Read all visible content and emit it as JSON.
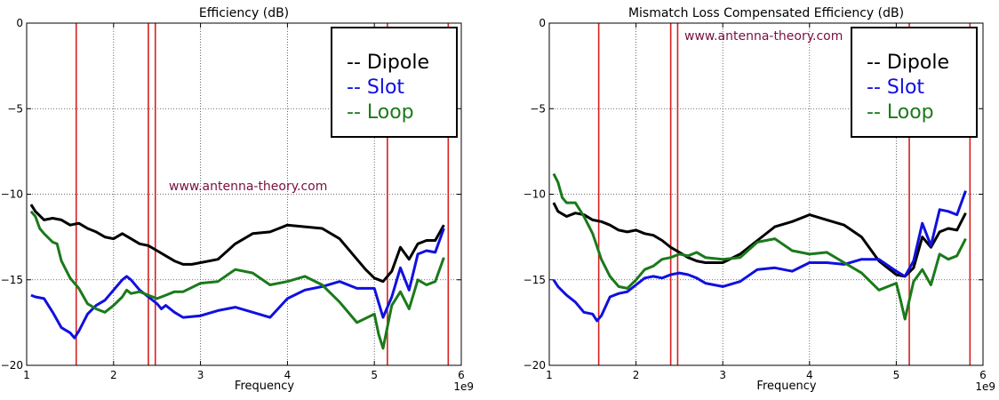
{
  "chart_data": [
    {
      "type": "line",
      "title": "Efficiency (dB)",
      "xlabel": "Frequency",
      "ylabel": "",
      "x_offset_label": "1e9",
      "xlim": [
        1,
        6
      ],
      "ylim": [
        -20,
        0
      ],
      "xticks": [
        "1",
        "2",
        "3",
        "4",
        "5",
        "6"
      ],
      "yticks": [
        "0",
        "−5",
        "−10",
        "−15",
        "−20"
      ],
      "grid": true,
      "legend_position": "top-right",
      "watermark": "www.antenna-theory.com",
      "vlines": [
        1.57,
        2.4,
        2.48,
        5.15,
        5.85
      ],
      "vline_color": "#d62020",
      "series": [
        {
          "name": "-- Dipole",
          "color": "#000000",
          "x": [
            1.05,
            1.1,
            1.2,
            1.3,
            1.4,
            1.5,
            1.6,
            1.7,
            1.8,
            1.9,
            2.0,
            2.1,
            2.2,
            2.3,
            2.4,
            2.5,
            2.6,
            2.7,
            2.8,
            2.9,
            3.0,
            3.2,
            3.4,
            3.6,
            3.8,
            4.0,
            4.2,
            4.4,
            4.6,
            4.8,
            4.9,
            5.0,
            5.1,
            5.2,
            5.3,
            5.4,
            5.5,
            5.6,
            5.7,
            5.8
          ],
          "y": [
            -10.6,
            -11.0,
            -11.5,
            -11.4,
            -11.5,
            -11.8,
            -11.7,
            -12.0,
            -12.2,
            -12.5,
            -12.6,
            -12.3,
            -12.6,
            -12.9,
            -13.0,
            -13.3,
            -13.6,
            -13.9,
            -14.1,
            -14.1,
            -14.0,
            -13.8,
            -12.9,
            -12.3,
            -12.2,
            -11.8,
            -11.9,
            -12.0,
            -12.6,
            -13.8,
            -14.4,
            -14.9,
            -15.1,
            -14.5,
            -13.1,
            -13.8,
            -12.9,
            -12.7,
            -12.7,
            -11.8
          ]
        },
        {
          "name": "-- Slot",
          "color": "#1010e0",
          "x": [
            1.05,
            1.1,
            1.2,
            1.3,
            1.4,
            1.5,
            1.55,
            1.6,
            1.7,
            1.8,
            1.9,
            2.0,
            2.1,
            2.15,
            2.2,
            2.3,
            2.4,
            2.5,
            2.55,
            2.6,
            2.7,
            2.8,
            3.0,
            3.2,
            3.4,
            3.6,
            3.8,
            4.0,
            4.2,
            4.4,
            4.6,
            4.8,
            5.0,
            5.1,
            5.2,
            5.3,
            5.4,
            5.5,
            5.6,
            5.7,
            5.8
          ],
          "y": [
            -15.9,
            -16.0,
            -16.1,
            -16.9,
            -17.8,
            -18.1,
            -18.4,
            -18.0,
            -17.0,
            -16.5,
            -16.2,
            -15.6,
            -15.0,
            -14.8,
            -15.0,
            -15.6,
            -16.0,
            -16.4,
            -16.7,
            -16.5,
            -16.9,
            -17.2,
            -17.1,
            -16.8,
            -16.6,
            -16.9,
            -17.2,
            -16.1,
            -15.6,
            -15.4,
            -15.1,
            -15.5,
            -15.5,
            -17.2,
            -16.0,
            -14.3,
            -15.6,
            -13.5,
            -13.3,
            -13.4,
            -12.0
          ]
        },
        {
          "name": "-- Loop",
          "color": "#1a7a1a",
          "x": [
            1.05,
            1.1,
            1.15,
            1.2,
            1.3,
            1.35,
            1.4,
            1.5,
            1.6,
            1.7,
            1.8,
            1.9,
            2.0,
            2.1,
            2.15,
            2.2,
            2.3,
            2.4,
            2.5,
            2.6,
            2.7,
            2.8,
            3.0,
            3.2,
            3.4,
            3.6,
            3.8,
            4.0,
            4.2,
            4.4,
            4.6,
            4.8,
            5.0,
            5.05,
            5.1,
            5.2,
            5.3,
            5.4,
            5.5,
            5.6,
            5.7,
            5.8
          ],
          "y": [
            -11.0,
            -11.3,
            -12.0,
            -12.3,
            -12.8,
            -12.9,
            -13.9,
            -14.9,
            -15.5,
            -16.4,
            -16.7,
            -16.9,
            -16.5,
            -16.0,
            -15.6,
            -15.8,
            -15.7,
            -15.9,
            -16.1,
            -15.9,
            -15.7,
            -15.7,
            -15.2,
            -15.1,
            -14.4,
            -14.6,
            -15.3,
            -15.1,
            -14.8,
            -15.3,
            -16.3,
            -17.5,
            -17.0,
            -18.2,
            -19.0,
            -16.5,
            -15.7,
            -16.7,
            -15.0,
            -15.3,
            -15.1,
            -13.7
          ]
        }
      ]
    },
    {
      "type": "line",
      "title": "Mismatch Loss Compensated Efficiency (dB)",
      "xlabel": "Frequency",
      "ylabel": "",
      "x_offset_label": "1e9",
      "xlim": [
        1,
        6
      ],
      "ylim": [
        -20,
        0
      ],
      "xticks": [
        "1",
        "2",
        "3",
        "4",
        "5",
        "6"
      ],
      "yticks": [
        "0",
        "−5",
        "−10",
        "−15",
        "−20"
      ],
      "grid": true,
      "legend_position": "top-right",
      "watermark": "www.antenna-theory.com",
      "vlines": [
        1.57,
        2.4,
        2.48,
        5.15,
        5.85
      ],
      "vline_color": "#d62020",
      "series": [
        {
          "name": "-- Dipole",
          "color": "#000000",
          "x": [
            1.05,
            1.1,
            1.2,
            1.3,
            1.4,
            1.5,
            1.6,
            1.7,
            1.8,
            1.9,
            2.0,
            2.1,
            2.2,
            2.3,
            2.4,
            2.5,
            2.6,
            2.7,
            2.8,
            3.0,
            3.2,
            3.4,
            3.6,
            3.8,
            4.0,
            4.2,
            4.4,
            4.6,
            4.8,
            4.9,
            5.0,
            5.1,
            5.2,
            5.3,
            5.4,
            5.5,
            5.6,
            5.7,
            5.8
          ],
          "y": [
            -10.5,
            -11.0,
            -11.3,
            -11.1,
            -11.2,
            -11.5,
            -11.6,
            -11.8,
            -12.1,
            -12.2,
            -12.1,
            -12.3,
            -12.4,
            -12.7,
            -13.1,
            -13.4,
            -13.7,
            -13.9,
            -14.0,
            -14.0,
            -13.5,
            -12.7,
            -11.9,
            -11.6,
            -11.2,
            -11.5,
            -11.8,
            -12.5,
            -13.9,
            -14.3,
            -14.7,
            -14.8,
            -14.3,
            -12.5,
            -13.1,
            -12.2,
            -12.0,
            -12.1,
            -11.1
          ]
        },
        {
          "name": "-- Slot",
          "color": "#1010e0",
          "x": [
            1.05,
            1.1,
            1.2,
            1.3,
            1.4,
            1.5,
            1.55,
            1.6,
            1.7,
            1.8,
            1.9,
            2.0,
            2.1,
            2.2,
            2.3,
            2.4,
            2.5,
            2.6,
            2.7,
            2.8,
            3.0,
            3.2,
            3.4,
            3.6,
            3.8,
            4.0,
            4.2,
            4.4,
            4.6,
            4.8,
            5.0,
            5.1,
            5.2,
            5.3,
            5.4,
            5.5,
            5.6,
            5.7,
            5.8
          ],
          "y": [
            -15.0,
            -15.4,
            -15.9,
            -16.3,
            -16.9,
            -17.0,
            -17.4,
            -17.1,
            -16.0,
            -15.8,
            -15.7,
            -15.3,
            -14.9,
            -14.8,
            -14.9,
            -14.7,
            -14.6,
            -14.7,
            -14.9,
            -15.2,
            -15.4,
            -15.1,
            -14.4,
            -14.3,
            -14.5,
            -14.0,
            -14.0,
            -14.1,
            -13.8,
            -13.8,
            -14.5,
            -14.8,
            -13.9,
            -11.7,
            -13.0,
            -10.9,
            -11.0,
            -11.2,
            -9.8
          ]
        },
        {
          "name": "-- Loop",
          "color": "#1a7a1a",
          "x": [
            1.05,
            1.1,
            1.15,
            1.2,
            1.3,
            1.4,
            1.5,
            1.6,
            1.7,
            1.8,
            1.9,
            2.0,
            2.1,
            2.2,
            2.3,
            2.4,
            2.5,
            2.6,
            2.7,
            2.8,
            3.0,
            3.2,
            3.4,
            3.6,
            3.8,
            4.0,
            4.2,
            4.4,
            4.6,
            4.8,
            5.0,
            5.05,
            5.1,
            5.2,
            5.3,
            5.4,
            5.5,
            5.6,
            5.7,
            5.8
          ],
          "y": [
            -8.8,
            -9.3,
            -10.2,
            -10.5,
            -10.5,
            -11.3,
            -12.3,
            -13.8,
            -14.8,
            -15.4,
            -15.5,
            -15.0,
            -14.4,
            -14.2,
            -13.8,
            -13.7,
            -13.5,
            -13.6,
            -13.4,
            -13.7,
            -13.8,
            -13.7,
            -12.8,
            -12.6,
            -13.3,
            -13.5,
            -13.4,
            -14.0,
            -14.6,
            -15.6,
            -15.2,
            -16.2,
            -17.3,
            -15.1,
            -14.4,
            -15.3,
            -13.5,
            -13.8,
            -13.6,
            -12.6
          ]
        }
      ]
    }
  ]
}
